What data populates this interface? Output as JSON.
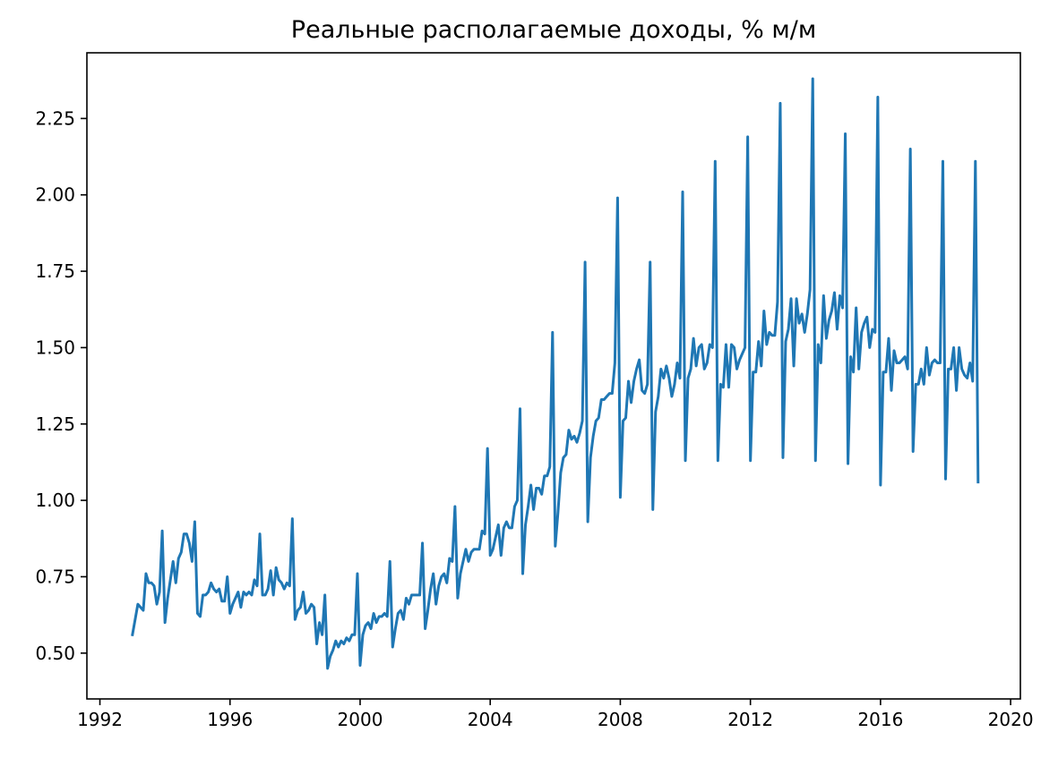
{
  "chart_data": {
    "type": "line",
    "title": "Реальные располагаемые доходы, % м/м",
    "xlabel": "",
    "ylabel": "",
    "xlim": [
      1991.6,
      2020.3
    ],
    "ylim": [
      0.35,
      2.465
    ],
    "x_ticks": [
      {
        "value": 1992,
        "label": "1992"
      },
      {
        "value": 1996,
        "label": "1996"
      },
      {
        "value": 2000,
        "label": "2000"
      },
      {
        "value": 2004,
        "label": "2004"
      },
      {
        "value": 2008,
        "label": "2008"
      },
      {
        "value": 2012,
        "label": "2012"
      },
      {
        "value": 2016,
        "label": "2016"
      },
      {
        "value": 2020,
        "label": "2020"
      }
    ],
    "y_ticks": [
      {
        "value": 0.5,
        "label": "0.50"
      },
      {
        "value": 0.75,
        "label": "0.75"
      },
      {
        "value": 1.0,
        "label": "1.00"
      },
      {
        "value": 1.25,
        "label": "1.25"
      },
      {
        "value": 1.5,
        "label": "1.50"
      },
      {
        "value": 1.75,
        "label": "1.75"
      },
      {
        "value": 2.0,
        "label": "2.00"
      },
      {
        "value": 2.25,
        "label": "2.25"
      }
    ],
    "grid": false,
    "legend": "none",
    "series": [
      {
        "color": "#1f77b4",
        "start_year": 1993,
        "start_month": 1,
        "frequency": "monthly",
        "values": [
          0.56,
          0.61,
          0.66,
          0.65,
          0.64,
          0.76,
          0.73,
          0.73,
          0.72,
          0.66,
          0.7,
          0.9,
          0.6,
          0.68,
          0.74,
          0.8,
          0.73,
          0.81,
          0.83,
          0.89,
          0.89,
          0.86,
          0.8,
          0.93,
          0.63,
          0.62,
          0.69,
          0.69,
          0.7,
          0.73,
          0.71,
          0.7,
          0.71,
          0.67,
          0.67,
          0.75,
          0.63,
          0.66,
          0.68,
          0.7,
          0.65,
          0.7,
          0.69,
          0.7,
          0.69,
          0.74,
          0.72,
          0.89,
          0.69,
          0.69,
          0.71,
          0.77,
          0.69,
          0.78,
          0.74,
          0.73,
          0.71,
          0.73,
          0.72,
          0.94,
          0.61,
          0.64,
          0.65,
          0.7,
          0.63,
          0.64,
          0.66,
          0.65,
          0.53,
          0.6,
          0.56,
          0.69,
          0.45,
          0.49,
          0.51,
          0.54,
          0.52,
          0.54,
          0.53,
          0.55,
          0.54,
          0.56,
          0.56,
          0.76,
          0.46,
          0.56,
          0.59,
          0.6,
          0.58,
          0.63,
          0.6,
          0.62,
          0.62,
          0.63,
          0.62,
          0.8,
          0.52,
          0.58,
          0.63,
          0.64,
          0.61,
          0.68,
          0.66,
          0.69,
          0.69,
          0.69,
          0.69,
          0.86,
          0.58,
          0.64,
          0.71,
          0.76,
          0.66,
          0.72,
          0.75,
          0.76,
          0.73,
          0.81,
          0.8,
          0.98,
          0.68,
          0.76,
          0.8,
          0.84,
          0.8,
          0.83,
          0.84,
          0.84,
          0.84,
          0.9,
          0.89,
          1.17,
          0.82,
          0.84,
          0.88,
          0.92,
          0.82,
          0.91,
          0.93,
          0.91,
          0.91,
          0.98,
          1.0,
          1.3,
          0.76,
          0.92,
          0.98,
          1.05,
          0.97,
          1.04,
          1.04,
          1.02,
          1.08,
          1.08,
          1.11,
          1.55,
          0.85,
          0.96,
          1.09,
          1.14,
          1.15,
          1.23,
          1.2,
          1.21,
          1.19,
          1.22,
          1.26,
          1.78,
          0.93,
          1.14,
          1.21,
          1.26,
          1.27,
          1.33,
          1.33,
          1.34,
          1.35,
          1.35,
          1.45,
          1.99,
          1.01,
          1.26,
          1.27,
          1.39,
          1.32,
          1.39,
          1.43,
          1.46,
          1.36,
          1.35,
          1.38,
          1.78,
          0.97,
          1.29,
          1.34,
          1.43,
          1.4,
          1.44,
          1.4,
          1.34,
          1.38,
          1.45,
          1.4,
          2.01,
          1.13,
          1.4,
          1.43,
          1.53,
          1.44,
          1.5,
          1.51,
          1.43,
          1.45,
          1.51,
          1.5,
          2.11,
          1.13,
          1.38,
          1.37,
          1.51,
          1.37,
          1.51,
          1.5,
          1.43,
          1.46,
          1.48,
          1.5,
          2.19,
          1.13,
          1.42,
          1.42,
          1.52,
          1.44,
          1.62,
          1.51,
          1.55,
          1.54,
          1.54,
          1.65,
          2.3,
          1.14,
          1.52,
          1.56,
          1.66,
          1.44,
          1.66,
          1.58,
          1.61,
          1.55,
          1.61,
          1.69,
          2.38,
          1.13,
          1.51,
          1.45,
          1.67,
          1.53,
          1.59,
          1.62,
          1.68,
          1.56,
          1.67,
          1.63,
          2.2,
          1.12,
          1.47,
          1.42,
          1.63,
          1.43,
          1.55,
          1.58,
          1.6,
          1.5,
          1.56,
          1.55,
          2.32,
          1.05,
          1.42,
          1.42,
          1.53,
          1.36,
          1.49,
          1.45,
          1.45,
          1.46,
          1.47,
          1.43,
          2.15,
          1.16,
          1.38,
          1.38,
          1.43,
          1.38,
          1.5,
          1.41,
          1.45,
          1.46,
          1.45,
          1.45,
          2.11,
          1.07,
          1.43,
          1.43,
          1.5,
          1.36,
          1.5,
          1.43,
          1.41,
          1.4,
          1.45,
          1.39,
          2.11,
          1.06
        ]
      }
    ]
  }
}
